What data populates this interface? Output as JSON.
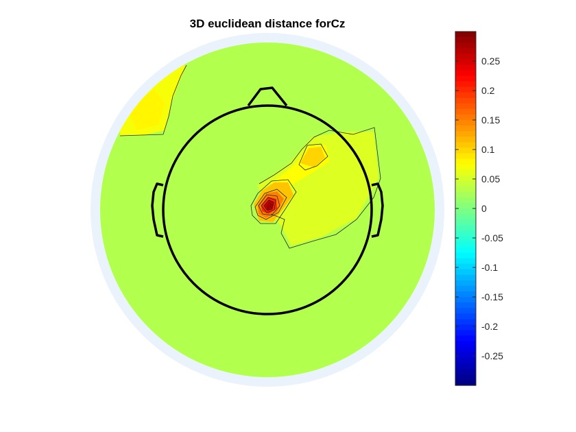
{
  "chart_data": {
    "type": "heatmap",
    "subtype": "scalp topographic map",
    "title": "3D euclidean distance forCz",
    "colormap": "jet",
    "clim": [
      -0.3,
      0.3
    ],
    "colorbar": {
      "position": "right",
      "ticks": [
        0.25,
        0.2,
        0.15,
        0.1,
        0.05,
        0,
        -0.05,
        -0.1,
        -0.15,
        -0.2,
        -0.25
      ],
      "tick_labels": [
        "0.25",
        "0.2",
        "0.15",
        "0.1",
        "0.05",
        "0",
        "-0.05",
        "-0.1",
        "-0.15",
        "-0.2",
        "-0.25"
      ]
    },
    "background_value": 0.03,
    "rim_color": "#eaf3fc",
    "peaks": [
      {
        "region": "central, left of midline",
        "value": 0.28
      },
      {
        "region": "right frontal-central",
        "value": 0.1
      },
      {
        "region": "left frontal (outside head)",
        "value": 0.08
      }
    ],
    "contours": true,
    "head_outline": {
      "nose": true,
      "ears": true
    }
  }
}
